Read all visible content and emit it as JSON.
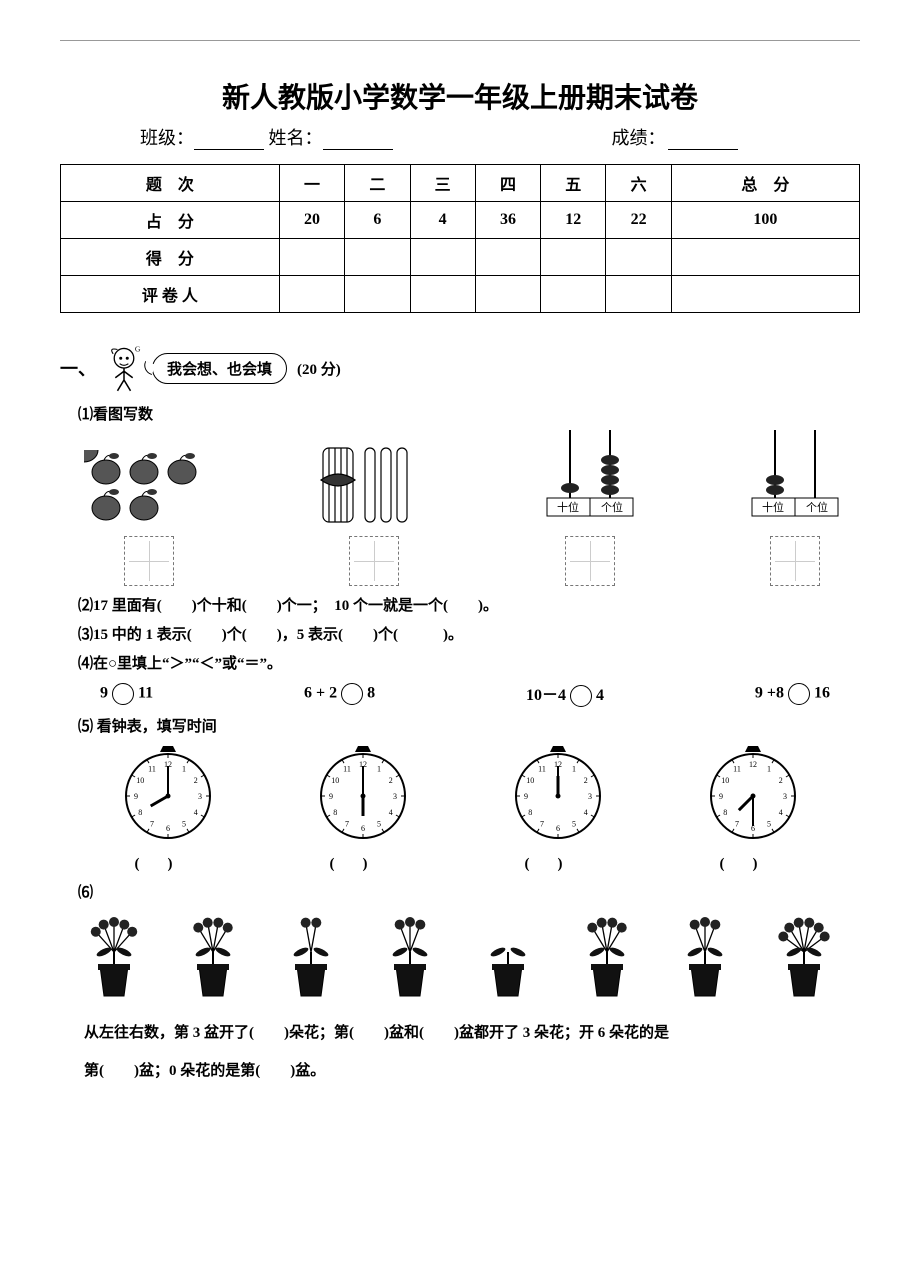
{
  "title": "新人教版小学数学一年级上册期末试卷",
  "info": {
    "class_label": "班级：",
    "name_label": "姓名：",
    "score_label": "成绩："
  },
  "score_table": {
    "headers": [
      "题　次",
      "一",
      "二",
      "三",
      "四",
      "五",
      "六",
      "总　分"
    ],
    "rows": [
      {
        "label": "占　分",
        "cells": [
          "20",
          "6",
          "4",
          "36",
          "12",
          "22",
          "100"
        ]
      },
      {
        "label": "得　分",
        "cells": [
          "",
          "",
          "",
          "",
          "",
          "",
          ""
        ]
      },
      {
        "label": "评 卷 人",
        "cells": [
          "",
          "",
          "",
          "",
          "",
          "",
          ""
        ]
      }
    ]
  },
  "section1": {
    "num": "一、",
    "bubble": "我会想、也会填",
    "points": "(20 分)"
  },
  "q1": {
    "label": "⑴看图写数"
  },
  "q2": {
    "text": "⑵17 里面有(　　)个十和(　　)个一；　10 个一就是一个(　　)。"
  },
  "q3": {
    "text": "⑶15 中的 1 表示(　　)个(　　)，5 表示(　　)个(　　　)。"
  },
  "q4": {
    "text": "⑷在○里填上“＞”“＜”或“＝”。"
  },
  "compare": {
    "a": {
      "l": "9",
      "r": "11"
    },
    "b": {
      "l": "6 + 2",
      "r": "8"
    },
    "c": {
      "l": "10－4",
      "r": "4"
    },
    "d": {
      "l": "9 +8",
      "r": "16"
    }
  },
  "q5": {
    "label": "⑸ 看钟表，填写时间"
  },
  "clocks": [
    {
      "hour": 8,
      "min": 0
    },
    {
      "hour": 6,
      "min": 0
    },
    {
      "hour": 12,
      "min": 0
    },
    {
      "hour": 7,
      "min": 30
    }
  ],
  "q6": {
    "label": "⑹"
  },
  "plants": [
    5,
    4,
    2,
    3,
    0,
    4,
    3,
    6
  ],
  "q6text": {
    "line1": "从左往右数，第 3 盆开了(　　)朵花；第(　　)盆和(　　)盆都开了 3 朵花；开 6 朵花的是",
    "line2": "第(　　)盆；0 朵花的是第(　　)盆。"
  },
  "abacus_labels": {
    "tens": "十位",
    "ones": "个位"
  },
  "colors": {
    "ink": "#000000",
    "grid": "#cccccc",
    "dash": "#888888"
  }
}
